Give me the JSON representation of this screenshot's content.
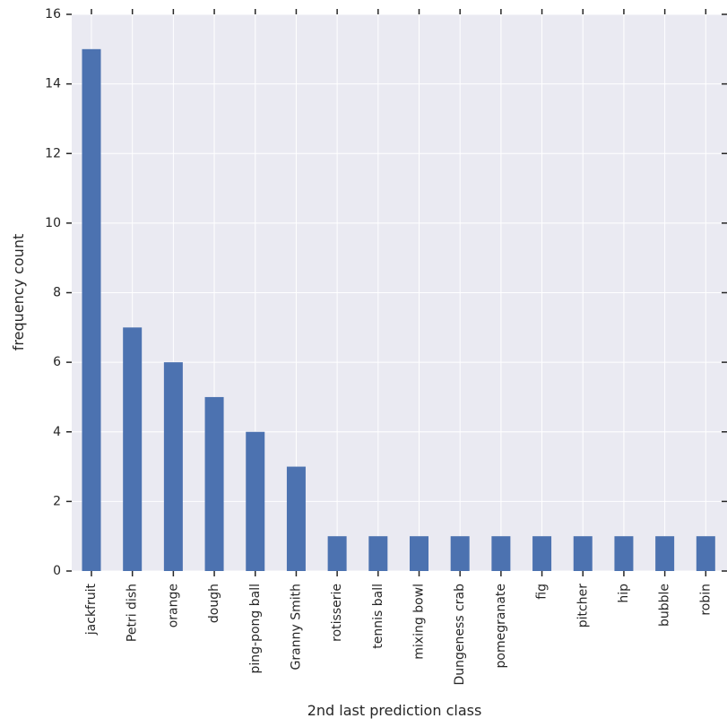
{
  "chart_data": {
    "type": "bar",
    "xlabel": "2nd last prediction class",
    "ylabel": "frequency count",
    "ylim": [
      0,
      16
    ],
    "yticks": [
      0,
      2,
      4,
      6,
      8,
      10,
      12,
      14,
      16
    ],
    "grid": true,
    "categories": [
      "jackfruit",
      "Petri dish",
      "orange",
      "dough",
      "ping-pong ball",
      "Granny Smith",
      "rotisserie",
      "tennis ball",
      "mixing bowl",
      "Dungeness crab",
      "pomegranate",
      "fig",
      "pitcher",
      "hip",
      "bubble",
      "robin"
    ],
    "values": [
      15,
      7,
      6,
      5,
      4,
      3,
      1,
      1,
      1,
      1,
      1,
      1,
      1,
      1,
      1,
      1
    ],
    "colors": {
      "bar": "#4c72b0",
      "background": "#eaeaf2",
      "grid": "#ffffff",
      "text": "#262626"
    }
  }
}
